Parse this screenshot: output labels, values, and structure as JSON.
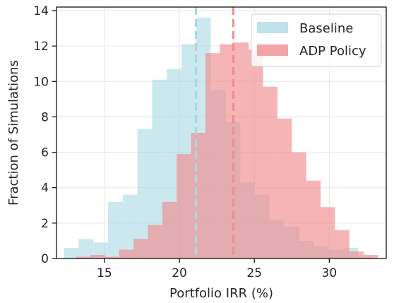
{
  "chart_data": {
    "type": "histogram",
    "xlabel": "Portfolio IRR (%)",
    "ylabel": "Fraction of Simulations",
    "xlim": [
      11.8,
      33.8
    ],
    "ylim": [
      0,
      14.2
    ],
    "xticks": [
      15,
      20,
      25,
      30
    ],
    "yticks": [
      0,
      2,
      4,
      6,
      8,
      10,
      12,
      14
    ],
    "grid": true,
    "legend_position": "top-right",
    "series": [
      {
        "name": "Baseline",
        "color": "#a8d8e2",
        "opacity": 0.6,
        "bin_edges": [
          12.3,
          13.28,
          14.26,
          15.24,
          16.22,
          17.2,
          18.18,
          19.16,
          20.14,
          21.12,
          22.1,
          23.08,
          24.06,
          25.04,
          26.02,
          27.0,
          28.0,
          28.98,
          29.96,
          30.94,
          31.92,
          32.9
        ],
        "values": [
          0.6,
          1.1,
          0.9,
          3.2,
          3.6,
          7.3,
          10.1,
          10.7,
          12.1,
          13.6,
          9.5,
          7.7,
          4.3,
          3.6,
          2.2,
          1.8,
          1.0,
          0.7,
          0.5,
          0.6,
          0.1
        ]
      },
      {
        "name": "ADP Policy",
        "color": "#f08c8f",
        "opacity": 0.65,
        "bin_edges": [
          13.1,
          14.06,
          15.02,
          15.98,
          16.94,
          17.9,
          18.86,
          19.82,
          20.78,
          21.74,
          22.7,
          23.66,
          24.62,
          25.58,
          26.54,
          27.5,
          28.46,
          29.42,
          30.38,
          31.34,
          32.3,
          33.26
        ],
        "values": [
          0.1,
          0.2,
          0.1,
          0.5,
          1.1,
          1.9,
          3.2,
          5.9,
          7.1,
          11.6,
          12.1,
          12.2,
          11.8,
          9.7,
          7.9,
          6.0,
          4.4,
          2.9,
          1.6,
          0.4,
          0.2
        ]
      }
    ],
    "reference_lines": [
      {
        "series": "Baseline",
        "x": 21.1,
        "color": "#a8d8e2",
        "style": "dashed"
      },
      {
        "series": "ADP Policy",
        "x": 23.6,
        "color": "#f08c8f",
        "style": "dashed"
      }
    ]
  }
}
